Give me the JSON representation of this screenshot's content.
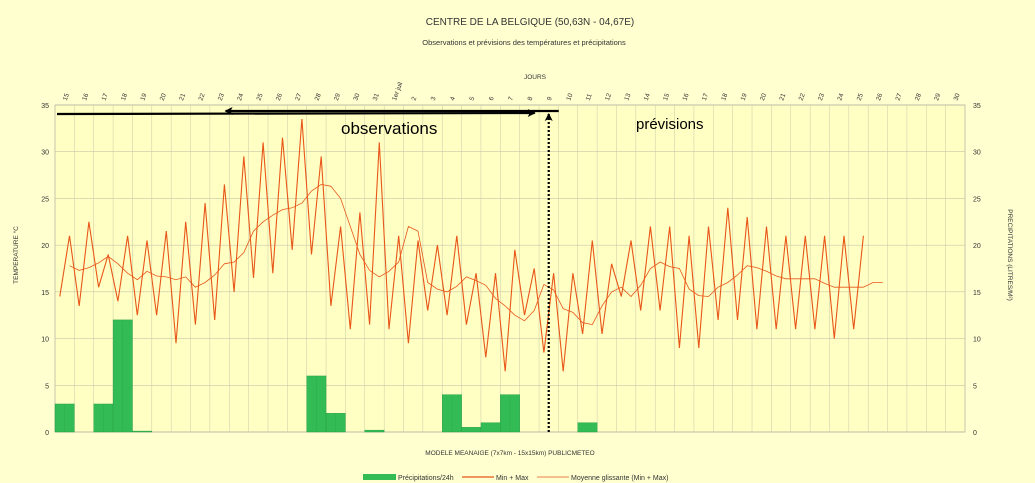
{
  "chart_data": {
    "type": "combo",
    "title": "CENTRE DE LA BELGIQUE (50,63N - 04,67E)",
    "subtitle": "Observations et prévisions des températures et précipitations",
    "top_axis_label": "JOURS",
    "xlabel": "MODELE MEANAIGE (7x7km - 15x15km) PUBLICMETEO",
    "ylabel_left": "TEMPERATURE °C",
    "ylabel_right": "PRECIPITATIONS (LITRES/M²)",
    "ylim": [
      0,
      35
    ],
    "y_ticks": [
      0,
      5,
      10,
      15,
      20,
      25,
      30,
      35
    ],
    "day_labels": [
      "15",
      "16",
      "17",
      "18",
      "19",
      "20",
      "21",
      "22",
      "23",
      "24",
      "25",
      "26",
      "27",
      "28",
      "29",
      "30",
      "31",
      "1er juil",
      "2",
      "3",
      "4",
      "5",
      "6",
      "7",
      "8",
      "9",
      "10",
      "11",
      "12",
      "13",
      "14",
      "15",
      "16",
      "17",
      "18",
      "19",
      "20",
      "21",
      "22",
      "23",
      "24",
      "25",
      "26",
      "27",
      "28",
      "29",
      "30"
    ],
    "annotations": {
      "observations": "observations",
      "previsions": "prévisions"
    },
    "legend": [
      {
        "name": "Précipitations/24h",
        "color": "#33bb55"
      },
      {
        "name": "Min + Max",
        "color": "#e8561a"
      },
      {
        "name": "Moyenne glissante (Min + Max)",
        "color": "#e8561a"
      }
    ],
    "series": [
      {
        "name": "Min + Max",
        "values": [
          14.5,
          21,
          13.5,
          22.5,
          15.5,
          19,
          14,
          21,
          12.5,
          20.5,
          12.5,
          21.5,
          9.5,
          22.5,
          11.5,
          24.5,
          12,
          26.5,
          15,
          29.5,
          16.5,
          31,
          17,
          31.5,
          19.5,
          33.5,
          19,
          29.5,
          13.5,
          22,
          11,
          23.5,
          11.5,
          31,
          11,
          21,
          9.5,
          20.5,
          13,
          20,
          12.5,
          21,
          11.5,
          17,
          8,
          17,
          6.5,
          19.5,
          12.5,
          17.5,
          8.5,
          17,
          6.5,
          17,
          10.5,
          20.5,
          10.5,
          18,
          14.5,
          20.5,
          13,
          22,
          13,
          22,
          9,
          21,
          9,
          22,
          12,
          24,
          12,
          23,
          11,
          22,
          11,
          21,
          11,
          21,
          11,
          21,
          10,
          21,
          11,
          21
        ]
      },
      {
        "name": "Moyenne glissante (Min + Max)",
        "values": [
          17.8,
          17.3,
          17.6,
          18.1,
          18.8,
          18,
          17,
          16.3,
          17.2,
          16.7,
          16.6,
          16.3,
          16.6,
          15.5,
          16,
          16.8,
          18,
          18.2,
          19.2,
          21.5,
          22.5,
          23.2,
          23.8,
          24,
          24.5,
          25.8,
          26.5,
          26.3,
          25,
          22,
          19,
          17.3,
          16.6,
          17.2,
          18.2,
          22,
          21.5,
          16,
          15.3,
          15,
          15.6,
          16.6,
          16.2,
          15.7,
          14.3,
          13.5,
          12.5,
          11.9,
          13,
          15.8,
          15.2,
          13.2,
          12.8,
          11.7,
          11.5,
          13.5,
          15,
          15.5,
          14.5,
          15.7,
          17.5,
          18.2,
          17.7,
          17.5,
          15.3,
          14.6,
          14.5,
          15.5,
          16,
          16.8,
          17.8,
          17.6,
          17.2,
          16.7,
          16.4,
          16.4,
          16.4,
          16.4,
          15.9,
          15.5,
          15.5,
          15.5,
          15.5,
          16,
          16
        ]
      }
    ],
    "precipitation": [
      {
        "day": "15",
        "value": 3
      },
      {
        "day": "17",
        "value": 3
      },
      {
        "day": "18",
        "value": 12
      },
      {
        "day": "19",
        "value": 0.1
      },
      {
        "day": "28",
        "value": 6
      },
      {
        "day": "29",
        "value": 2
      },
      {
        "day": "31",
        "value": 0.2
      },
      {
        "day": "4",
        "value": 4
      },
      {
        "day": "5",
        "value": 0.5
      },
      {
        "day": "6",
        "value": 1
      },
      {
        "day": "7",
        "value": 4
      },
      {
        "day": "11",
        "value": 1
      }
    ]
  }
}
